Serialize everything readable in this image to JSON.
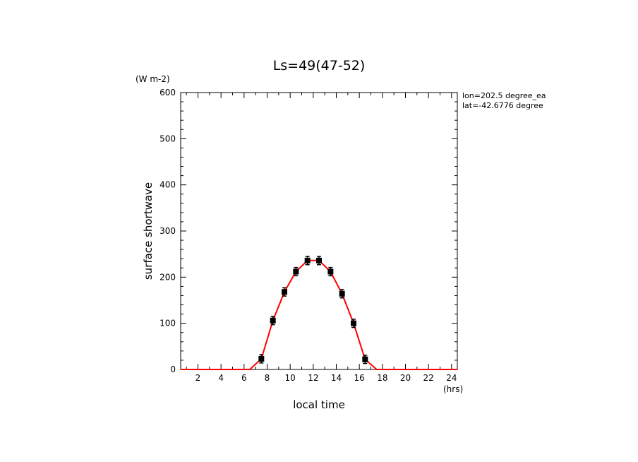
{
  "chart_data": {
    "type": "line",
    "title": "Ls=49(47-52)",
    "xlabel": "local time",
    "ylabel": "surface shortwave",
    "x_unit": "(hrs)",
    "y_unit": "(W m-2)",
    "xlim": [
      0.5,
      24.5
    ],
    "ylim": [
      0,
      600
    ],
    "x_ticks": [
      2,
      4,
      6,
      8,
      10,
      12,
      14,
      16,
      18,
      20,
      22,
      24
    ],
    "y_ticks": [
      0,
      100,
      200,
      300,
      400,
      500,
      600
    ],
    "annotations": [
      "lon=202.5 degree_ea",
      "lat=-42.6776 degree"
    ],
    "series": [
      {
        "kind": "line",
        "color": "#ff0000",
        "x": [
          0.5,
          1.5,
          2.5,
          3.5,
          4.5,
          5.5,
          6.5,
          7.5,
          8.5,
          9.5,
          10.5,
          11.5,
          12.5,
          13.5,
          14.5,
          15.5,
          16.5,
          17.5,
          18.5,
          19.5,
          20.5,
          21.5,
          22.5,
          23.5,
          24.5
        ],
        "y": [
          0,
          0,
          0,
          0,
          0,
          0,
          0,
          23,
          106,
          168,
          212,
          236,
          236,
          212,
          164,
          100,
          22,
          0,
          0,
          0,
          0,
          0,
          0,
          0,
          0
        ]
      },
      {
        "kind": "points_with_errorbars",
        "color": "#000000",
        "x": [
          7.5,
          8.5,
          9.5,
          10.5,
          11.5,
          12.5,
          13.5,
          14.5,
          15.5,
          16.5
        ],
        "y": [
          23,
          106,
          168,
          212,
          236,
          236,
          212,
          164,
          100,
          22
        ],
        "err": [
          9,
          9,
          9,
          9,
          9,
          9,
          9,
          9,
          9,
          9
        ]
      }
    ]
  }
}
